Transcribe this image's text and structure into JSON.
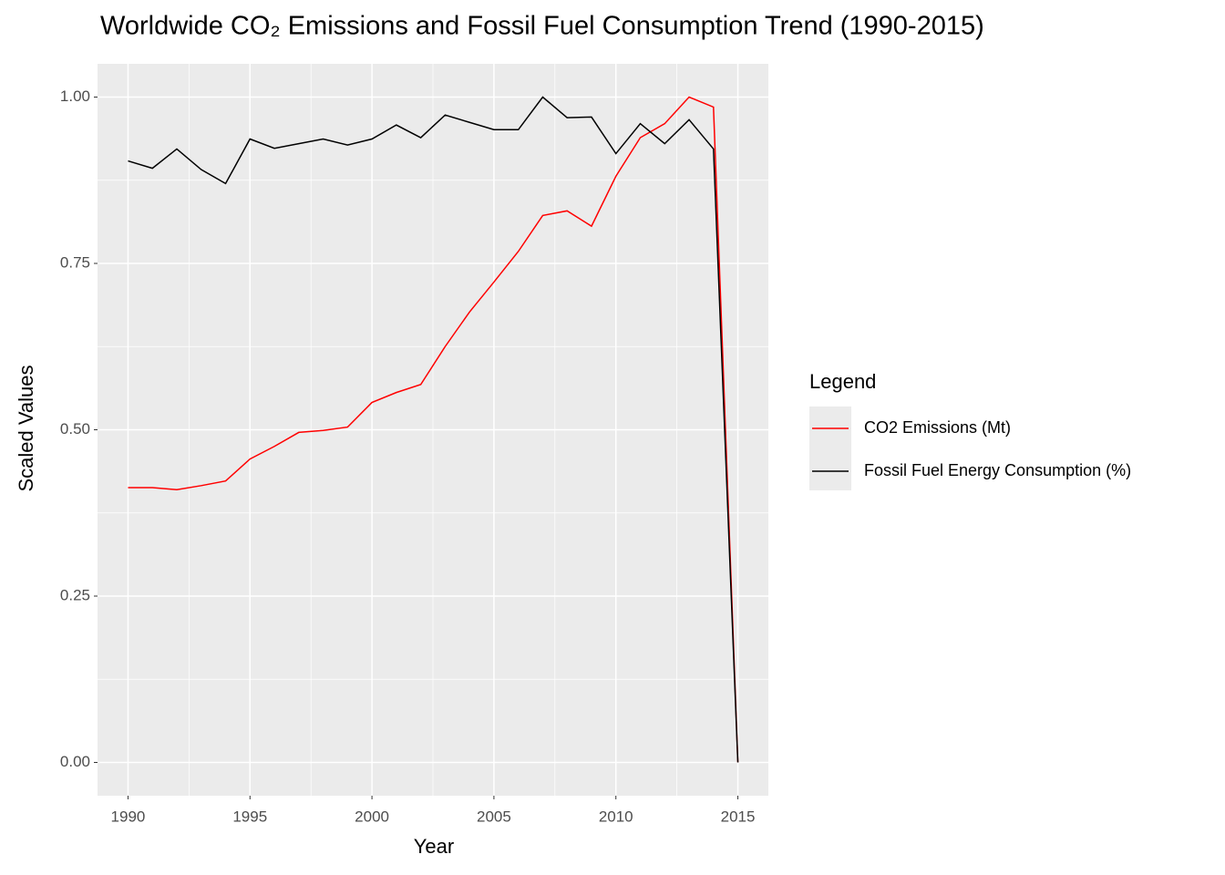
{
  "chart_data": {
    "type": "line",
    "title": "Worldwide CO₂ Emissions and Fossil Fuel Consumption Trend (1990-2015)",
    "x_label": "Year",
    "y_label": "Scaled Values",
    "legend_title": "Legend",
    "legend_position": "right",
    "x": [
      1990,
      1991,
      1992,
      1993,
      1994,
      1995,
      1996,
      1997,
      1998,
      1999,
      2000,
      2001,
      2002,
      2003,
      2004,
      2005,
      2006,
      2007,
      2008,
      2009,
      2010,
      2011,
      2012,
      2013,
      2014,
      2015
    ],
    "series": [
      {
        "name": "CO2 Emissions (Mt)",
        "color": "#ff0000",
        "values": [
          0.413,
          0.413,
          0.41,
          0.416,
          0.423,
          0.456,
          0.475,
          0.496,
          0.499,
          0.504,
          0.541,
          0.556,
          0.568,
          0.625,
          0.677,
          0.722,
          0.768,
          0.822,
          0.829,
          0.806,
          0.881,
          0.939,
          0.96,
          1.0,
          0.985,
          0
        ]
      },
      {
        "name": "Fossil Fuel Energy Consumption (%)",
        "color": "#000000",
        "values": [
          0.904,
          0.893,
          0.922,
          0.891,
          0.87,
          0.937,
          0.923,
          0.93,
          0.937,
          0.928,
          0.937,
          0.958,
          0.939,
          0.973,
          0.962,
          0.951,
          0.951,
          1.0,
          0.969,
          0.97,
          0.915,
          0.96,
          0.93,
          0.966,
          0.922,
          0
        ]
      }
    ],
    "xlim": [
      1988.75,
      2016.25
    ],
    "xticks": [
      1990,
      1995,
      2000,
      2005,
      2010,
      2015
    ],
    "minor_xticks": [
      1992.5,
      1997.5,
      2002.5,
      2007.5,
      2012.5
    ],
    "ylim": [
      -0.05,
      1.05
    ],
    "yticks": [
      {
        "value": 0,
        "label": "0.00"
      },
      {
        "value": 0.25,
        "label": "0.25"
      },
      {
        "value": 0.5,
        "label": "0.50"
      },
      {
        "value": 0.75,
        "label": "0.75"
      },
      {
        "value": 1,
        "label": "1.00"
      }
    ],
    "minor_yticks": [
      0.125,
      0.375,
      0.625,
      0.875
    ],
    "grid": true
  }
}
